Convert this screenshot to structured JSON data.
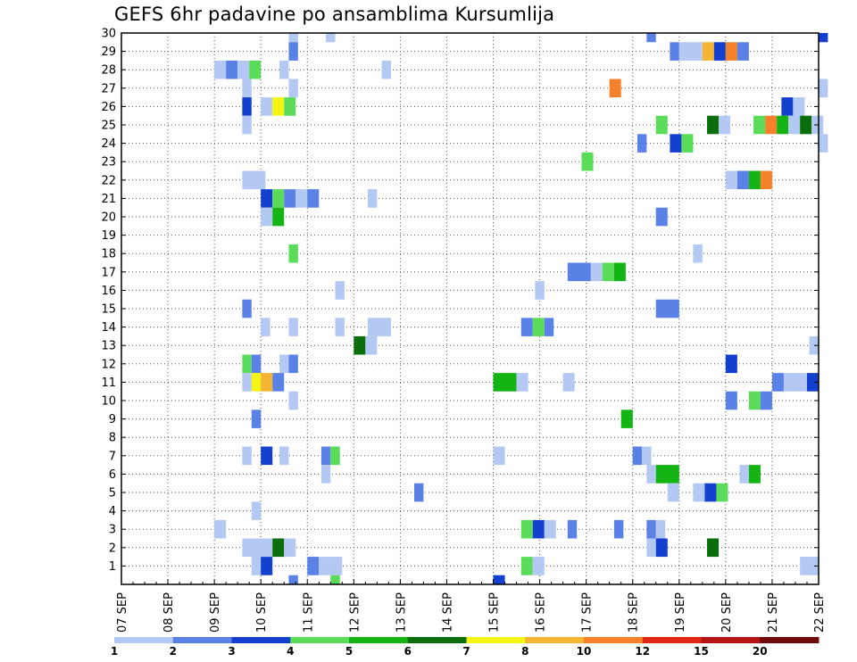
{
  "chart_data": {
    "type": "heatmap",
    "title": "GEFS 6hr padavine po ansamblima Kursumlija",
    "xlabel": "",
    "ylabel": "",
    "x_ticks": [
      "07 SEP",
      "08 SEP",
      "09 SEP",
      "10 SEP",
      "11 SEP",
      "12 SEP",
      "13 SEP",
      "14 SEP",
      "15 SEP",
      "16 SEP",
      "17 SEP",
      "18 SEP",
      "19 SEP",
      "20 SEP",
      "21 SEP",
      "22 SEP"
    ],
    "x_range_days": [
      0,
      15
    ],
    "steps_per_day": 4,
    "y_ticks": [
      1,
      2,
      3,
      4,
      5,
      6,
      7,
      8,
      9,
      10,
      11,
      12,
      13,
      14,
      15,
      16,
      17,
      18,
      19,
      20,
      21,
      22,
      23,
      24,
      25,
      26,
      27,
      28,
      29,
      30
    ],
    "y_range": [
      0,
      30
    ],
    "grid": true,
    "legend_position": "bottom",
    "legend": {
      "labels": [
        "1",
        "2",
        "3",
        "4",
        "5",
        "6",
        "7",
        "8",
        "10",
        "12",
        "15",
        "20"
      ],
      "colors": [
        "#b4c8f4",
        "#5a82e6",
        "#1440d0",
        "#5adc5a",
        "#14b414",
        "#0a6e0a",
        "#f5f514",
        "#f5b432",
        "#f5822a",
        "#e02814",
        "#b41414",
        "#6e0a0a"
      ]
    },
    "thresholds": [
      1,
      2,
      3,
      4,
      5,
      6,
      7,
      8,
      10,
      12,
      15,
      20
    ],
    "cells_format": "[member, start_day, end_day, mm]",
    "cells": [
      [
        30,
        3.6,
        3.8,
        1
      ],
      [
        30,
        4.4,
        4.6,
        1
      ],
      [
        30,
        11.3,
        11.5,
        2
      ],
      [
        30,
        15.0,
        15.2,
        3
      ],
      [
        29,
        3.6,
        3.8,
        2
      ],
      [
        29,
        11.8,
        12.0,
        2
      ],
      [
        29,
        12.0,
        12.5,
        1
      ],
      [
        29,
        12.5,
        12.75,
        8
      ],
      [
        29,
        12.75,
        13.0,
        3
      ],
      [
        29,
        13.0,
        13.25,
        10
      ],
      [
        29,
        13.25,
        13.5,
        2
      ],
      [
        28,
        2.0,
        2.25,
        1
      ],
      [
        28,
        2.25,
        2.5,
        2
      ],
      [
        28,
        2.5,
        2.75,
        1
      ],
      [
        28,
        2.75,
        3.0,
        4
      ],
      [
        28,
        3.4,
        3.6,
        1
      ],
      [
        28,
        5.6,
        5.8,
        1
      ],
      [
        27,
        2.6,
        2.8,
        1
      ],
      [
        27,
        3.6,
        3.8,
        1
      ],
      [
        27,
        10.5,
        10.75,
        10
      ],
      [
        27,
        15.0,
        15.2,
        1
      ],
      [
        26,
        2.6,
        2.8,
        3
      ],
      [
        26,
        3.0,
        3.25,
        1
      ],
      [
        26,
        3.25,
        3.5,
        7
      ],
      [
        26,
        3.5,
        3.75,
        4
      ],
      [
        26,
        14.2,
        14.45,
        3
      ],
      [
        26,
        14.45,
        14.7,
        1
      ],
      [
        25,
        2.6,
        2.8,
        1
      ],
      [
        25,
        11.5,
        11.75,
        4
      ],
      [
        25,
        12.6,
        12.85,
        6
      ],
      [
        25,
        12.85,
        13.1,
        1
      ],
      [
        25,
        13.6,
        13.85,
        4
      ],
      [
        25,
        13.85,
        14.1,
        10
      ],
      [
        25,
        14.1,
        14.35,
        5
      ],
      [
        25,
        14.35,
        14.6,
        1
      ],
      [
        25,
        14.6,
        14.85,
        6
      ],
      [
        25,
        14.85,
        15.1,
        1
      ],
      [
        24,
        11.1,
        11.3,
        2
      ],
      [
        24,
        11.8,
        12.05,
        3
      ],
      [
        24,
        12.05,
        12.3,
        4
      ],
      [
        24,
        15.0,
        15.2,
        1
      ],
      [
        23,
        9.9,
        10.15,
        4
      ],
      [
        22,
        2.6,
        3.1,
        1
      ],
      [
        22,
        13.0,
        13.25,
        1
      ],
      [
        22,
        13.25,
        13.5,
        2
      ],
      [
        22,
        13.5,
        13.75,
        5
      ],
      [
        22,
        13.75,
        14.0,
        10
      ],
      [
        21,
        3.0,
        3.25,
        3
      ],
      [
        21,
        3.25,
        3.5,
        4
      ],
      [
        21,
        3.5,
        3.75,
        2
      ],
      [
        21,
        3.75,
        4.0,
        1
      ],
      [
        21,
        4.0,
        4.25,
        2
      ],
      [
        21,
        5.3,
        5.5,
        1
      ],
      [
        20,
        3.0,
        3.25,
        1
      ],
      [
        20,
        3.25,
        3.5,
        5
      ],
      [
        20,
        11.5,
        11.75,
        2
      ],
      [
        18,
        3.6,
        3.8,
        4
      ],
      [
        18,
        12.3,
        12.5,
        1
      ],
      [
        17,
        9.6,
        10.1,
        2
      ],
      [
        17,
        10.1,
        10.35,
        1
      ],
      [
        17,
        10.35,
        10.6,
        4
      ],
      [
        17,
        10.6,
        10.85,
        5
      ],
      [
        16,
        4.6,
        4.8,
        1
      ],
      [
        16,
        8.9,
        9.1,
        1
      ],
      [
        15,
        2.6,
        2.8,
        2
      ],
      [
        15,
        11.5,
        12.0,
        2
      ],
      [
        14,
        3.0,
        3.2,
        1
      ],
      [
        14,
        3.6,
        3.8,
        1
      ],
      [
        14,
        4.6,
        4.8,
        1
      ],
      [
        14,
        5.3,
        5.8,
        1
      ],
      [
        14,
        8.6,
        8.85,
        2
      ],
      [
        14,
        8.85,
        9.1,
        4
      ],
      [
        14,
        9.1,
        9.3,
        2
      ],
      [
        13,
        5.0,
        5.25,
        6
      ],
      [
        13,
        5.25,
        5.5,
        1
      ],
      [
        13,
        14.8,
        15.0,
        1
      ],
      [
        12,
        2.6,
        2.8,
        4
      ],
      [
        12,
        2.8,
        3.0,
        2
      ],
      [
        12,
        3.4,
        3.6,
        1
      ],
      [
        12,
        3.6,
        3.8,
        2
      ],
      [
        12,
        13.0,
        13.25,
        3
      ],
      [
        11,
        2.6,
        2.8,
        1
      ],
      [
        11,
        2.8,
        3.0,
        7
      ],
      [
        11,
        3.0,
        3.25,
        8
      ],
      [
        11,
        3.25,
        3.5,
        2
      ],
      [
        11,
        8.0,
        8.5,
        5
      ],
      [
        11,
        8.5,
        8.75,
        1
      ],
      [
        11,
        9.5,
        9.75,
        1
      ],
      [
        11,
        14.0,
        14.25,
        2
      ],
      [
        11,
        14.25,
        14.75,
        1
      ],
      [
        11,
        14.75,
        15.0,
        3
      ],
      [
        10,
        3.6,
        3.8,
        1
      ],
      [
        10,
        13.0,
        13.25,
        2
      ],
      [
        10,
        13.5,
        13.75,
        4
      ],
      [
        10,
        13.75,
        14.0,
        2
      ],
      [
        9,
        2.8,
        3.0,
        2
      ],
      [
        9,
        10.75,
        11.0,
        5
      ],
      [
        7,
        2.6,
        2.8,
        1
      ],
      [
        7,
        3.0,
        3.25,
        3
      ],
      [
        7,
        3.4,
        3.6,
        1
      ],
      [
        7,
        4.3,
        4.5,
        2
      ],
      [
        7,
        4.5,
        4.7,
        4
      ],
      [
        7,
        8.0,
        8.25,
        1
      ],
      [
        7,
        11.0,
        11.2,
        2
      ],
      [
        7,
        11.2,
        11.4,
        1
      ],
      [
        6,
        4.3,
        4.5,
        1
      ],
      [
        6,
        11.3,
        11.5,
        1
      ],
      [
        6,
        11.5,
        12.0,
        5
      ],
      [
        6,
        13.3,
        13.5,
        1
      ],
      [
        6,
        13.5,
        13.75,
        5
      ],
      [
        5,
        6.3,
        6.5,
        2
      ],
      [
        5,
        11.75,
        12.0,
        1
      ],
      [
        5,
        12.3,
        12.55,
        1
      ],
      [
        5,
        12.55,
        12.8,
        3
      ],
      [
        5,
        12.8,
        13.05,
        4
      ],
      [
        4,
        2.8,
        3.0,
        1
      ],
      [
        3,
        2.0,
        2.25,
        1
      ],
      [
        3,
        8.6,
        8.85,
        4
      ],
      [
        3,
        8.85,
        9.1,
        3
      ],
      [
        3,
        9.1,
        9.35,
        1
      ],
      [
        3,
        9.6,
        9.8,
        2
      ],
      [
        3,
        10.6,
        10.8,
        2
      ],
      [
        3,
        11.3,
        11.5,
        2
      ],
      [
        3,
        11.5,
        11.7,
        1
      ],
      [
        2,
        2.6,
        3.0,
        1
      ],
      [
        2,
        3.0,
        3.25,
        1
      ],
      [
        2,
        3.25,
        3.5,
        6
      ],
      [
        2,
        3.5,
        3.75,
        1
      ],
      [
        2,
        11.3,
        11.5,
        1
      ],
      [
        2,
        11.5,
        11.75,
        3
      ],
      [
        2,
        12.6,
        12.85,
        6
      ],
      [
        1,
        2.8,
        3.0,
        1
      ],
      [
        1,
        3.0,
        3.25,
        3
      ],
      [
        1,
        4.0,
        4.25,
        2
      ],
      [
        1,
        4.25,
        4.75,
        1
      ],
      [
        1,
        8.6,
        8.85,
        4
      ],
      [
        1,
        8.85,
        9.1,
        1
      ],
      [
        1,
        14.6,
        15.0,
        1
      ],
      [
        0,
        3.6,
        3.8,
        2
      ],
      [
        0,
        4.5,
        4.7,
        4
      ],
      [
        0,
        8.0,
        8.25,
        3
      ]
    ]
  }
}
